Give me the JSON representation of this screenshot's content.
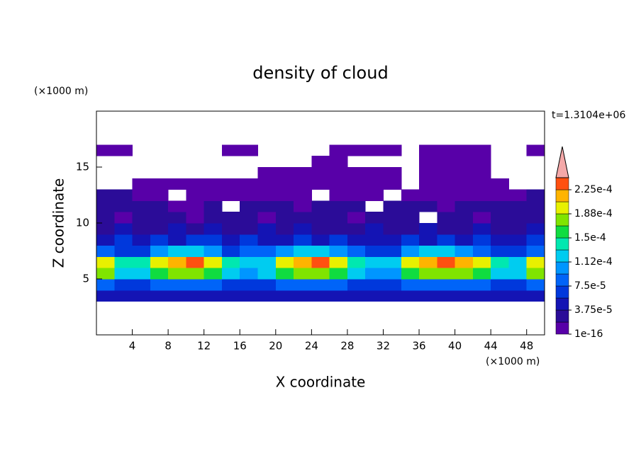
{
  "chart_data": {
    "type": "contour",
    "title": "density of cloud",
    "x_label": "X coordinate",
    "y_label": "Z coordinate",
    "x_unit": "(×1000 m)",
    "y_unit": "(×1000 m)",
    "annotation": "t=1.3104e+06",
    "xlim": [
      0,
      50
    ],
    "ylim": [
      0,
      20
    ],
    "xticks": [
      4,
      8,
      12,
      16,
      20,
      24,
      28,
      32,
      36,
      40,
      44,
      48
    ],
    "yticks": [
      5,
      10,
      15
    ],
    "x": [
      1,
      3,
      5,
      7,
      9,
      11,
      13,
      15,
      17,
      19,
      21,
      23,
      25,
      27,
      29,
      31,
      33,
      35,
      37,
      39,
      41,
      43,
      45,
      47,
      49
    ],
    "y": [
      3.5,
      4.5,
      5.5,
      6.5,
      7.5,
      8.5,
      9.5,
      10.5,
      11.5,
      12.5,
      13.5,
      14.5,
      15.5,
      16.5,
      17.5
    ],
    "z": [
      [
        4.7e-05,
        4.7e-05,
        4.7e-05,
        4.7e-05,
        4.7e-05,
        4.7e-05,
        4.7e-05,
        4.7e-05,
        4.7e-05,
        4.7e-05,
        4.7e-05,
        4.7e-05,
        4.7e-05,
        4.7e-05,
        4.7e-05,
        4.7e-05,
        4.7e-05,
        4.7e-05,
        4.7e-05,
        4.7e-05,
        4.7e-05,
        4.7e-05,
        4.7e-05,
        4.7e-05,
        4.7e-05
      ],
      [
        8.4e-05,
        6.6e-05,
        6.6e-05,
        8.4e-05,
        8.4e-05,
        8.4e-05,
        8.4e-05,
        6.6e-05,
        6.6e-05,
        6.6e-05,
        8.4e-05,
        8.4e-05,
        8.4e-05,
        8.4e-05,
        6.6e-05,
        6.6e-05,
        6.6e-05,
        8.4e-05,
        8.4e-05,
        8.4e-05,
        8.4e-05,
        8.4e-05,
        6.6e-05,
        6.6e-05,
        8.4e-05
      ],
      [
        0.000178,
        0.000122,
        0.000122,
        0.000159,
        0.000178,
        0.000178,
        0.000159,
        0.000122,
        0.000103,
        0.000122,
        0.000159,
        0.000178,
        0.000178,
        0.000159,
        0.000122,
        0.000103,
        0.000103,
        0.000159,
        0.000178,
        0.000178,
        0.000178,
        0.000159,
        0.000122,
        0.000122,
        0.000178
      ],
      [
        0.000197,
        0.000141,
        0.000141,
        0.000197,
        0.000216,
        0.000234,
        0.000197,
        0.000141,
        0.000122,
        0.000122,
        0.000197,
        0.000216,
        0.000234,
        0.000197,
        0.000141,
        0.000122,
        0.000122,
        0.000197,
        0.000216,
        0.000234,
        0.000216,
        0.000197,
        0.000141,
        0.000122,
        0.000197
      ],
      [
        8.4e-05,
        6.6e-05,
        6.6e-05,
        0.000103,
        0.000122,
        0.000122,
        0.000103,
        6.6e-05,
        8.4e-05,
        8.4e-05,
        0.000103,
        0.000122,
        0.000122,
        0.000103,
        8.4e-05,
        6.6e-05,
        6.6e-05,
        0.000103,
        0.000122,
        0.000122,
        0.000103,
        8.4e-05,
        6.6e-05,
        6.6e-05,
        8.4e-05
      ],
      [
        4.7e-05,
        6.6e-05,
        4.7e-05,
        6.6e-05,
        4.7e-05,
        6.6e-05,
        6.6e-05,
        4.7e-05,
        6.6e-05,
        4.7e-05,
        4.7e-05,
        6.6e-05,
        4.7e-05,
        6.6e-05,
        4.7e-05,
        4.7e-05,
        4.7e-05,
        6.6e-05,
        4.7e-05,
        6.6e-05,
        4.7e-05,
        6.6e-05,
        4.7e-05,
        4.7e-05,
        6.6e-05
      ],
      [
        2.8e-05,
        4.7e-05,
        2.8e-05,
        2.8e-05,
        4.7e-05,
        2.8e-05,
        4.7e-05,
        2.8e-05,
        2.8e-05,
        4.7e-05,
        2.8e-05,
        4.7e-05,
        2.8e-05,
        2.8e-05,
        2.8e-05,
        4.7e-05,
        2.8e-05,
        2.8e-05,
        4.7e-05,
        2.8e-05,
        2.8e-05,
        4.7e-05,
        2.8e-05,
        2.8e-05,
        4.7e-05
      ],
      [
        2.8e-05,
        9e-06,
        2.8e-05,
        2.8e-05,
        2.8e-05,
        9e-06,
        2.8e-05,
        2.8e-05,
        2.8e-05,
        9e-06,
        2.8e-05,
        2.8e-05,
        2.8e-05,
        2.8e-05,
        9e-06,
        2.8e-05,
        2.8e-05,
        2.8e-05,
        null,
        2.8e-05,
        2.8e-05,
        9e-06,
        2.8e-05,
        2.8e-05,
        2.8e-05
      ],
      [
        2.8e-05,
        2.8e-05,
        2.8e-05,
        2.8e-05,
        9e-06,
        9e-06,
        2.8e-05,
        null,
        2.8e-05,
        2.8e-05,
        2.8e-05,
        9e-06,
        2.8e-05,
        2.8e-05,
        2.8e-05,
        null,
        2.8e-05,
        2.8e-05,
        2.8e-05,
        9e-06,
        2.8e-05,
        2.8e-05,
        2.8e-05,
        2.8e-05,
        2.8e-05
      ],
      [
        2.8e-05,
        2.8e-05,
        9e-06,
        9e-06,
        null,
        9e-06,
        9e-06,
        9e-06,
        9e-06,
        9e-06,
        9e-06,
        9e-06,
        null,
        9e-06,
        9e-06,
        9e-06,
        null,
        9e-06,
        9e-06,
        9e-06,
        9e-06,
        9e-06,
        9e-06,
        9e-06,
        2.8e-05
      ],
      [
        null,
        null,
        9e-06,
        9e-06,
        9e-06,
        9e-06,
        9e-06,
        9e-06,
        9e-06,
        9e-06,
        9e-06,
        9e-06,
        9e-06,
        9e-06,
        9e-06,
        9e-06,
        9e-06,
        null,
        9e-06,
        9e-06,
        9e-06,
        9e-06,
        9e-06,
        null,
        null
      ],
      [
        null,
        null,
        null,
        null,
        null,
        null,
        null,
        null,
        null,
        9e-06,
        9e-06,
        9e-06,
        9e-06,
        9e-06,
        9e-06,
        9e-06,
        9e-06,
        null,
        9e-06,
        9e-06,
        9e-06,
        9e-06,
        null,
        null,
        null
      ],
      [
        null,
        null,
        null,
        null,
        null,
        null,
        null,
        null,
        null,
        null,
        null,
        null,
        9e-06,
        9e-06,
        null,
        null,
        null,
        null,
        9e-06,
        9e-06,
        9e-06,
        9e-06,
        null,
        null,
        null
      ],
      [
        9e-06,
        9e-06,
        null,
        null,
        null,
        null,
        null,
        9e-06,
        9e-06,
        null,
        null,
        null,
        null,
        9e-06,
        9e-06,
        9e-06,
        9e-06,
        null,
        9e-06,
        9e-06,
        9e-06,
        9e-06,
        null,
        null,
        9e-06
      ],
      [
        null,
        null,
        null,
        null,
        null,
        null,
        null,
        null,
        null,
        null,
        null,
        null,
        null,
        null,
        null,
        null,
        null,
        null,
        null,
        null,
        null,
        null,
        null,
        null,
        null
      ]
    ],
    "levels": [
      1e-16,
      1.875e-05,
      3.75e-05,
      5.625e-05,
      7.5e-05,
      9.375e-05,
      0.0001125,
      0.00013125,
      0.00015,
      0.00016875,
      0.0001875,
      0.00020625,
      0.000225
    ],
    "colors": [
      "#5800a8",
      "#2b0c98",
      "#1414b4",
      "#0038dc",
      "#0064f8",
      "#0096ff",
      "#00ccf0",
      "#00e8b0",
      "#10dc40",
      "#80e400",
      "#e8f000",
      "#ffb400",
      "#ff5010"
    ],
    "extend_color": "#f4a8a8",
    "colorbar_lim": [
      1e-16,
      0.00024375
    ],
    "colorbar_ticks": [
      1e-16,
      {
        "value": 3.75e-05,
        "label": "3.75e-5"
      },
      {
        "value": 7.5e-05,
        "label": "7.5e-5"
      },
      {
        "value": 0.0001125,
        "label": "1.12e-4"
      },
      {
        "value": 0.00015,
        "label": "1.5e-4"
      },
      {
        "value": 0.0001875,
        "label": "1.88e-4"
      },
      {
        "value": 0.000225,
        "label": "2.25e-4"
      }
    ]
  }
}
